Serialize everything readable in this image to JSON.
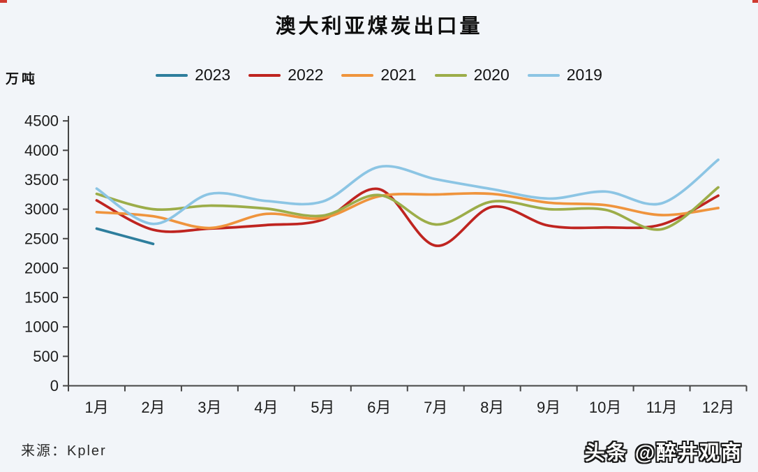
{
  "title": "澳大利亚煤炭出口量",
  "source_label": "来源：Kpler",
  "watermark": "头条 @醉井观商",
  "axis_color": "#454545",
  "chart_data": {
    "type": "line",
    "title": "澳大利亚煤炭出口量",
    "ylabel": "万吨",
    "xlabel": "",
    "x": [
      "1月",
      "2月",
      "3月",
      "4月",
      "5月",
      "6月",
      "7月",
      "8月",
      "9月",
      "10月",
      "11月",
      "12月"
    ],
    "ylim": [
      0,
      4500
    ],
    "ytick_step": 500,
    "grid": false,
    "legend_position": "top",
    "series": [
      {
        "name": "2023",
        "color": "#2e7e9d",
        "values": [
          2670,
          2410,
          null,
          null,
          null,
          null,
          null,
          null,
          null,
          null,
          null,
          null
        ]
      },
      {
        "name": "2022",
        "color": "#bf2420",
        "values": [
          3150,
          2650,
          2670,
          2730,
          2820,
          3340,
          2380,
          3040,
          2720,
          2690,
          2740,
          3230
        ]
      },
      {
        "name": "2021",
        "color": "#ef943d",
        "values": [
          2950,
          2880,
          2680,
          2920,
          2850,
          3220,
          3250,
          3260,
          3110,
          3070,
          2900,
          3020
        ]
      },
      {
        "name": "2020",
        "color": "#9cad49",
        "values": [
          3260,
          3000,
          3060,
          3010,
          2890,
          3240,
          2740,
          3130,
          3000,
          2990,
          2660,
          3370
        ]
      },
      {
        "name": "2019",
        "color": "#8cc5e4",
        "values": [
          3350,
          2750,
          3260,
          3140,
          3130,
          3720,
          3510,
          3340,
          3180,
          3300,
          3100,
          3840
        ]
      }
    ]
  }
}
